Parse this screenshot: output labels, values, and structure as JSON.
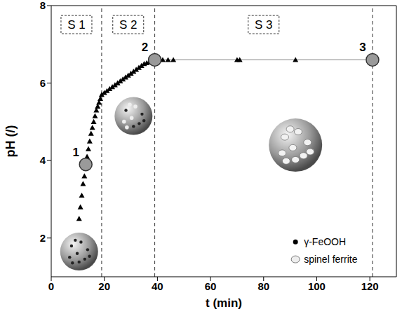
{
  "chart_data": {
    "type": "scatter",
    "xlabel": "t (min)",
    "ylabel": "pH (/)",
    "x": [
      10.5,
      11,
      11.5,
      12,
      12.5,
      13,
      13.5,
      14,
      14.5,
      15,
      15.5,
      16,
      16.5,
      17,
      17.5,
      18,
      18.5,
      19,
      20,
      21,
      22,
      23,
      24,
      25,
      26,
      27,
      28,
      29,
      30,
      31,
      32,
      33,
      34,
      35,
      36,
      37,
      38,
      40,
      42,
      44,
      46,
      70,
      71,
      92
    ],
    "values": [
      2.5,
      2.8,
      3.1,
      3.4,
      3.6,
      3.9,
      4.1,
      4.3,
      4.5,
      4.7,
      4.85,
      5.0,
      5.15,
      5.3,
      5.4,
      5.5,
      5.6,
      5.7,
      5.75,
      5.8,
      5.85,
      5.9,
      5.95,
      6.0,
      6.05,
      6.1,
      6.15,
      6.2,
      6.25,
      6.3,
      6.35,
      6.4,
      6.45,
      6.5,
      6.52,
      6.55,
      6.58,
      6.6,
      6.6,
      6.6,
      6.6,
      6.6,
      6.6,
      6.6
    ],
    "color": "#000000",
    "marker": "triangle",
    "xlim": [
      0,
      130
    ],
    "xticks": [
      0,
      20,
      40,
      60,
      80,
      100,
      120
    ],
    "ylim": [
      1,
      8
    ],
    "yticks": [
      2,
      4,
      6,
      8
    ],
    "plateau": {
      "x": [
        39,
        121
      ],
      "values": [
        6.6,
        6.6
      ],
      "color": "#999999",
      "line_style": "solid"
    },
    "points": {
      "labels": [
        "1",
        "2",
        "3"
      ],
      "x": [
        13,
        39,
        121
      ],
      "values": [
        3.9,
        6.6,
        6.6
      ],
      "color": "#9a9a9a",
      "marker": "circle"
    },
    "stage_boundaries": {
      "x": [
        19,
        39,
        121
      ],
      "line_style": "dashed"
    },
    "stages": [
      "S 1",
      "S 2",
      "S 3"
    ],
    "annotations": [
      "γ-FeOOH",
      "spinel ferrite"
    ]
  }
}
